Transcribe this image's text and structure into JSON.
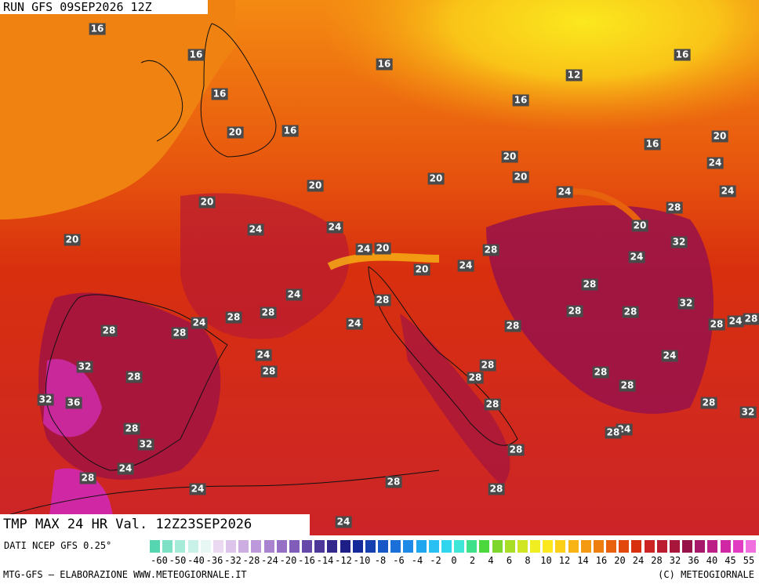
{
  "header": {
    "run": "RUN GFS 09SEP2026 12Z"
  },
  "map": {
    "title": "TMP MAX 24 HR Val. 12Z23SEP2026",
    "labels": [
      16,
      16,
      16,
      12,
      16,
      16,
      16,
      20,
      16,
      16,
      20,
      20,
      24,
      20,
      20,
      20,
      24,
      24,
      20,
      28,
      24,
      24,
      20,
      20,
      24,
      20,
      32,
      28,
      24,
      24,
      20,
      28,
      24,
      28,
      32,
      28,
      28,
      24,
      28,
      28,
      24,
      28,
      24,
      28,
      28,
      28,
      28,
      24,
      28,
      28,
      24,
      32,
      28,
      28,
      28,
      28,
      32,
      36,
      28,
      28,
      32,
      28,
      24,
      32,
      28,
      28,
      24,
      28,
      28,
      24,
      28,
      24
    ]
  },
  "legend": {
    "source": "DATI NCEP GFS 0.25°",
    "ticks": [
      -60,
      -50,
      -40,
      -36,
      -32,
      -28,
      -24,
      -20,
      -16,
      -14,
      -12,
      -10,
      -8,
      -6,
      -4,
      -2,
      0,
      2,
      4,
      6,
      8,
      10,
      12,
      14,
      16,
      20,
      24,
      28,
      32,
      36,
      40,
      45,
      55
    ],
    "colors": [
      "#55d6b0",
      "#7ee0c4",
      "#a6ead8",
      "#c8f2e8",
      "#e6f7f4",
      "#ead9f0",
      "#dcc4ea",
      "#cdaee2",
      "#bd98da",
      "#a983cf",
      "#9570c4",
      "#7f5db8",
      "#6648a8",
      "#4d3799",
      "#33288c",
      "#1d1e86",
      "#142a9a",
      "#1640b0",
      "#1858c6",
      "#1a70d8",
      "#1c8ae6",
      "#20a6ee",
      "#28c0f2",
      "#30d6ee",
      "#40e6d8",
      "#3fe08a",
      "#4bd83c",
      "#7ed62c",
      "#a8de26",
      "#d0e622",
      "#f0ee20",
      "#fce81c",
      "#fcd018",
      "#f8b414",
      "#f49a12",
      "#ee7e10",
      "#e8620e",
      "#e2480c",
      "#d8300e",
      "#cc2424",
      "#bc1c30",
      "#a8163c",
      "#98124a",
      "#a8186a",
      "#bc2086",
      "#d028a4",
      "#e23cc2",
      "#f070e0"
    ],
    "credit_left": "MTG-GFS — ELABORAZIONE WWW.METEOGIORNALE.IT",
    "credit_right": "(C) METEOGIORNALE"
  }
}
